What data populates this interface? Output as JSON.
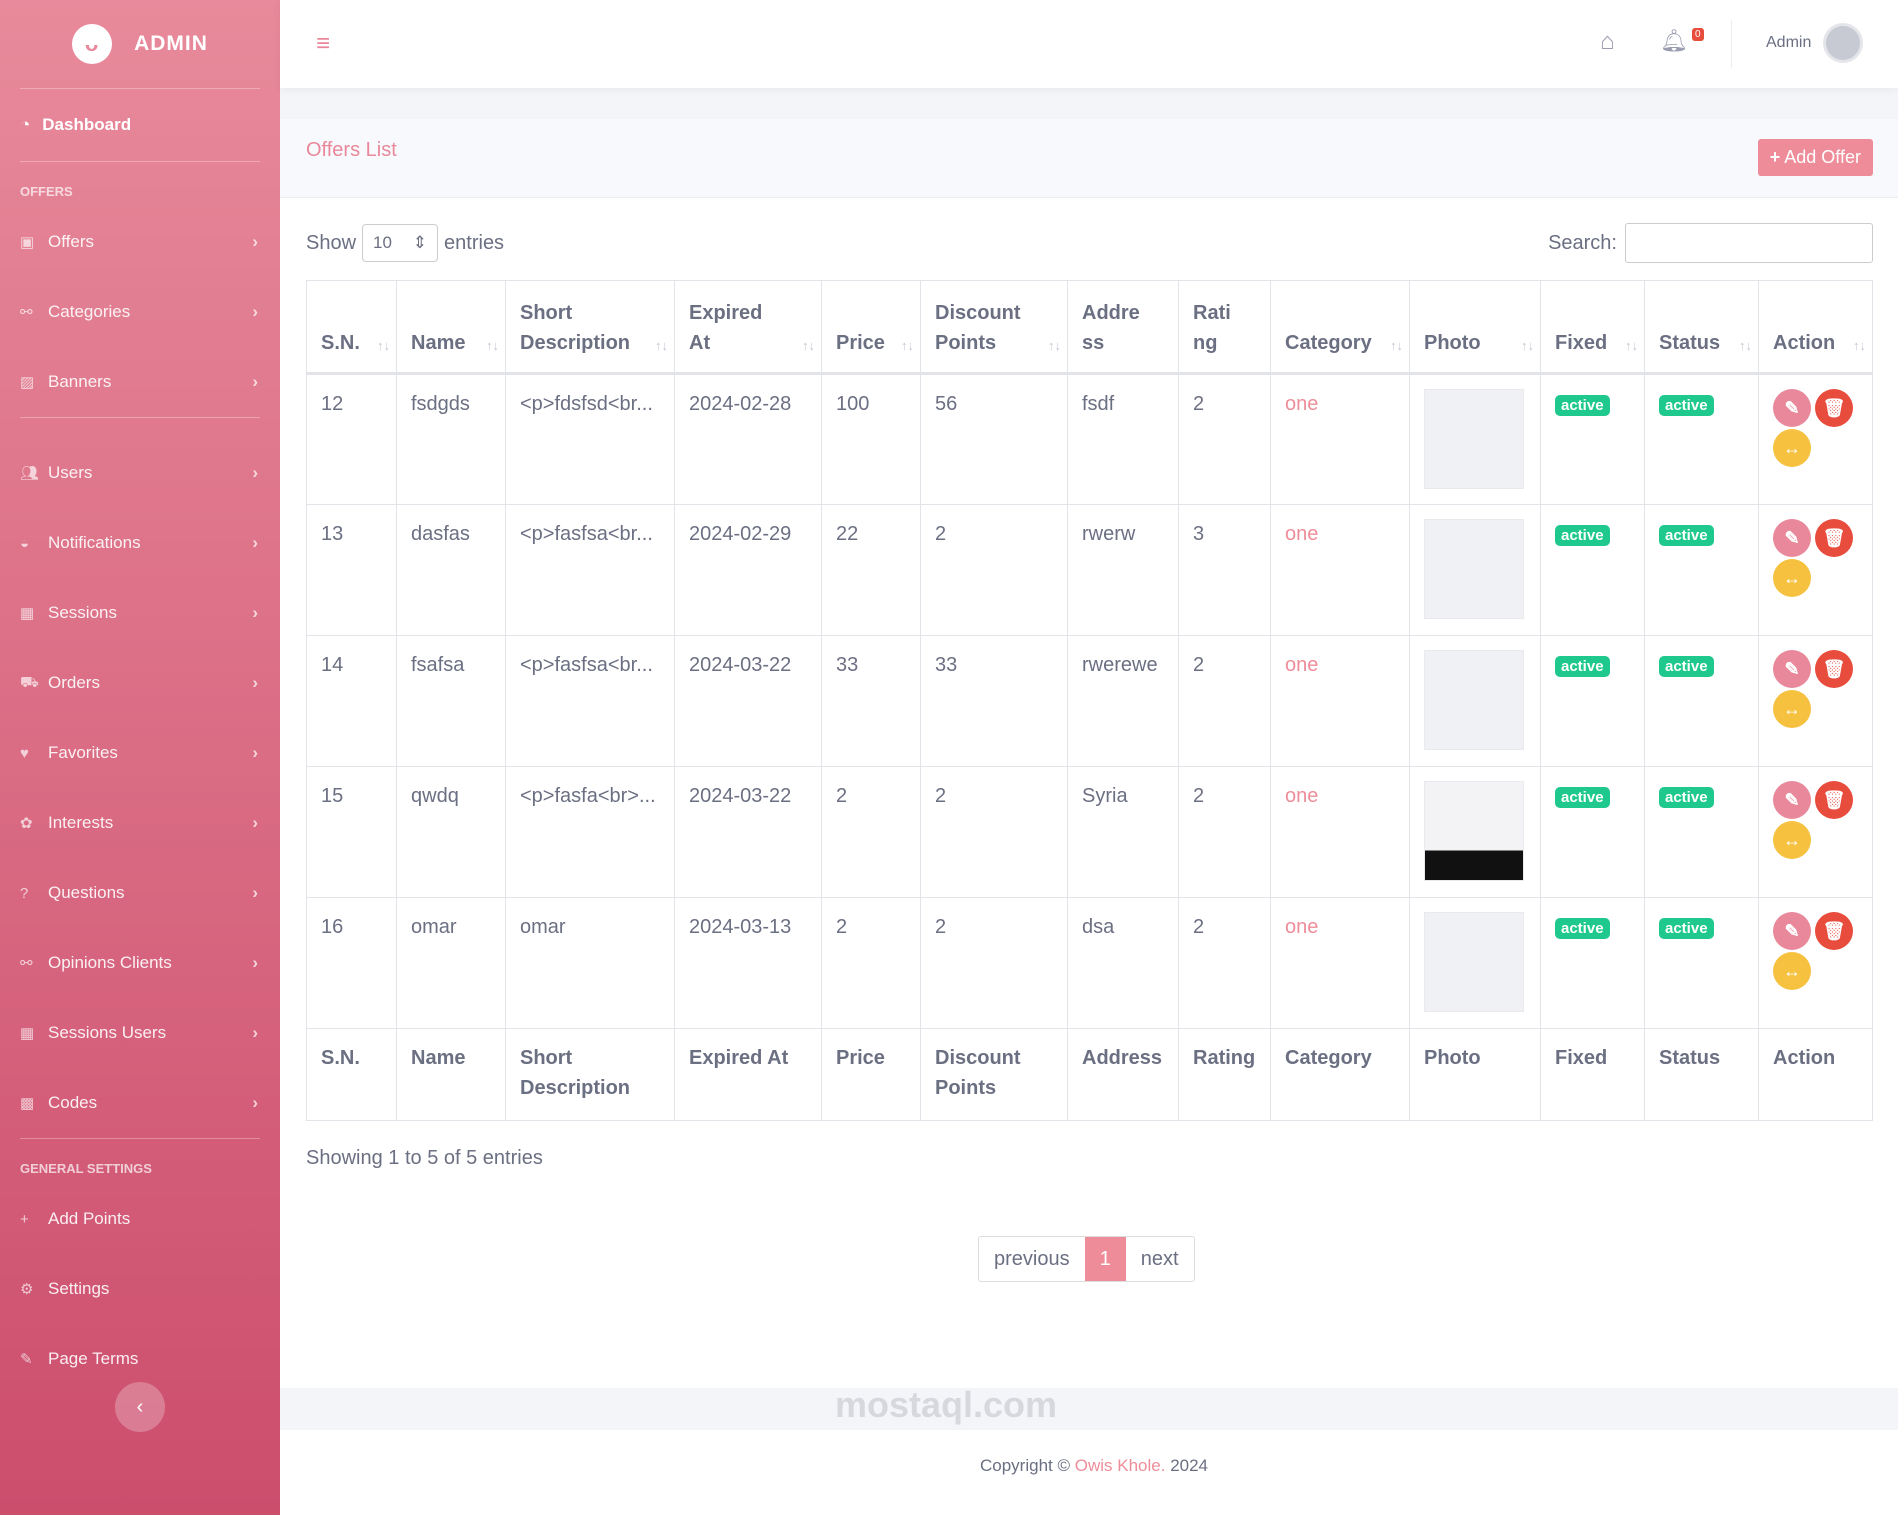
{
  "brand": "ADMIN",
  "sidebar": {
    "dashboard": "Dashboard",
    "section_offers": "OFFERS",
    "items": [
      {
        "label": "Offers",
        "icon": "images-icon"
      },
      {
        "label": "Categories",
        "icon": "sitemap-icon"
      },
      {
        "label": "Banners",
        "icon": "image-icon"
      },
      {
        "label": "Users",
        "icon": "users-icon"
      },
      {
        "label": "Notifications",
        "icon": "bell-icon"
      },
      {
        "label": "Sessions",
        "icon": "table-icon"
      },
      {
        "label": "Orders",
        "icon": "truck-icon"
      },
      {
        "label": "Favorites",
        "icon": "heart-icon"
      },
      {
        "label": "Interests",
        "icon": "interests-icon"
      },
      {
        "label": "Questions",
        "icon": "question-icon"
      },
      {
        "label": "Opinions Clients",
        "icon": "sitemap-icon"
      },
      {
        "label": "Sessions Users",
        "icon": "table-icon"
      },
      {
        "label": "Codes",
        "icon": "qrcode-icon"
      }
    ],
    "section_general": "GENERAL SETTINGS",
    "general": [
      {
        "label": "Add Points",
        "icon": "plus-icon"
      },
      {
        "label": "Settings",
        "icon": "gear-icon"
      },
      {
        "label": "Page Terms",
        "icon": "terms-icon"
      }
    ]
  },
  "topbar": {
    "notifications": "0",
    "user": "Admin"
  },
  "card": {
    "title": "Offers List",
    "add": "Add Offer"
  },
  "controls": {
    "show": "Show",
    "entries_value": "10",
    "entries": "entries",
    "search": "Search:"
  },
  "table": {
    "headers": [
      "S.N.",
      "Name",
      "Short Description",
      "Expired At",
      "Price",
      "Discount Points",
      "Address",
      "Rating",
      "Category",
      "Photo",
      "Fixed",
      "Status",
      "Action"
    ],
    "head_lines": [
      [
        "S.N."
      ],
      [
        "Name"
      ],
      [
        "Short",
        "Description"
      ],
      [
        "Expired",
        "At"
      ],
      [
        "Price"
      ],
      [
        "Discount",
        "Points"
      ],
      [
        "Address"
      ],
      [
        "Rating"
      ],
      [
        "Category"
      ],
      [
        "Photo"
      ],
      [
        "Fixed"
      ],
      [
        "Status"
      ],
      [
        "Action"
      ]
    ],
    "rows": [
      {
        "sn": "12",
        "name": "fsdgds",
        "desc": "<p>fdsfsd<br...",
        "expired": "2024-02-28",
        "price": "100",
        "points": "56",
        "address": "fsdf",
        "rating": "2",
        "category": "one",
        "fixed": "active",
        "status": "active"
      },
      {
        "sn": "13",
        "name": "dasfas",
        "desc": "<p>fasfsa<br...",
        "expired": "2024-02-29",
        "price": "22",
        "points": "2",
        "address": "rwerw",
        "rating": "3",
        "category": "one",
        "fixed": "active",
        "status": "active"
      },
      {
        "sn": "14",
        "name": "fsafsa",
        "desc": "<p>fasfsa<br...",
        "expired": "2024-03-22",
        "price": "33",
        "points": "33",
        "address": "rwerewe",
        "rating": "2",
        "category": "one",
        "fixed": "active",
        "status": "active"
      },
      {
        "sn": "15",
        "name": "qwdq",
        "desc": "<p>fasfa<br>...",
        "expired": "2024-03-22",
        "price": "2",
        "points": "2",
        "address": "Syria",
        "rating": "2",
        "category": "one",
        "fixed": "active",
        "status": "active"
      },
      {
        "sn": "16",
        "name": "omar",
        "desc": "omar",
        "expired": "2024-03-13",
        "price": "2",
        "points": "2",
        "address": "dsa",
        "rating": "2",
        "category": "one",
        "fixed": "active",
        "status": "active"
      }
    ]
  },
  "info": "Showing 1 to 5 of 5 entries",
  "pager": {
    "prev": "previous",
    "page": "1",
    "next": "next"
  },
  "footer": {
    "copyright": "Copyright ©",
    "author": "Owis Khole.",
    "year": "2024"
  },
  "watermark": "mostaql.com"
}
